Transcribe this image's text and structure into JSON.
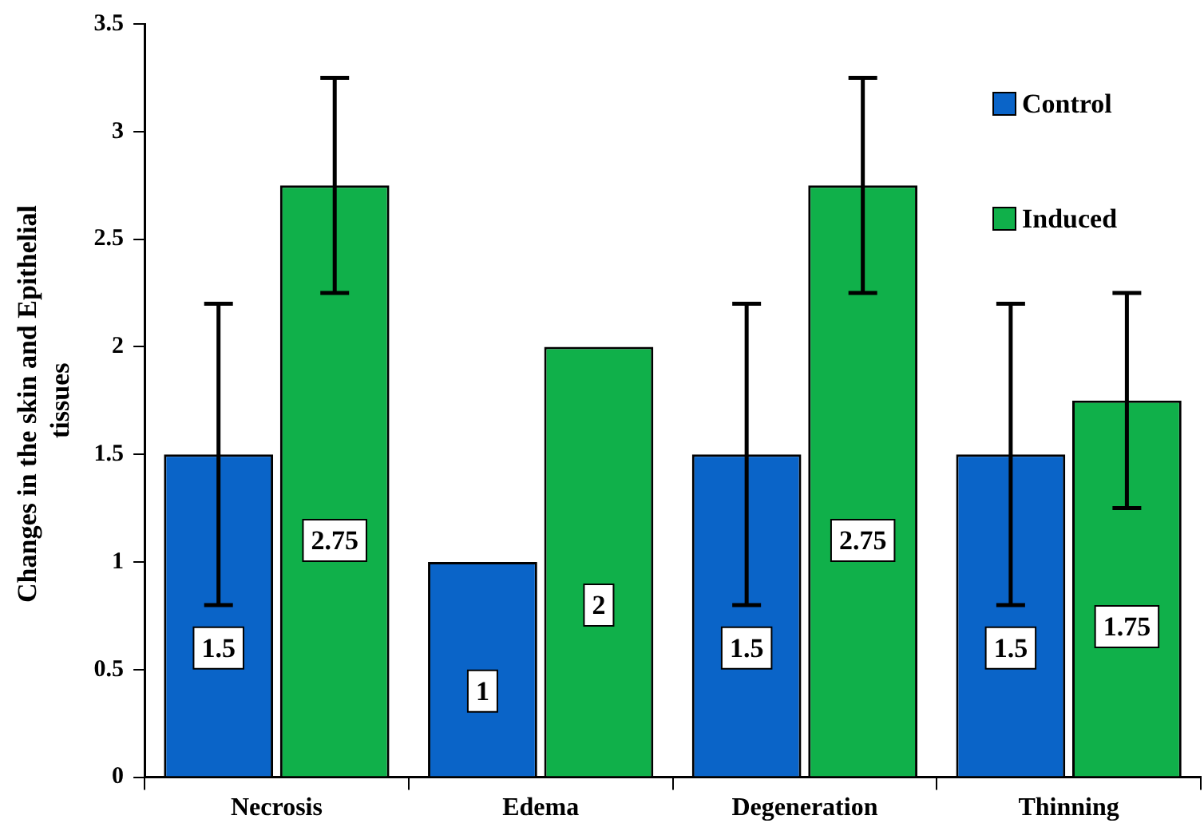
{
  "chart_data": {
    "type": "bar",
    "ylabel": "Changes in the skin and Epithelial  tissues",
    "categories": [
      "Necrosis",
      "Edema",
      "Degeneration",
      "Thinning"
    ],
    "series": [
      {
        "name": "Control",
        "color": "#0a64c8",
        "values": [
          1.5,
          1,
          1.5,
          1.5
        ],
        "errors": [
          0.7,
          null,
          0.7,
          0.7
        ]
      },
      {
        "name": "Induced",
        "color": "#10b04a",
        "values": [
          2.75,
          2,
          2.75,
          1.75
        ],
        "errors": [
          0.5,
          null,
          0.5,
          0.5
        ]
      }
    ],
    "ylim": [
      0,
      3.5
    ],
    "yticks": [
      0,
      0.5,
      1,
      1.5,
      2,
      2.5,
      3,
      3.5
    ],
    "grid": false,
    "legend": "top right",
    "data_labels": true
  }
}
